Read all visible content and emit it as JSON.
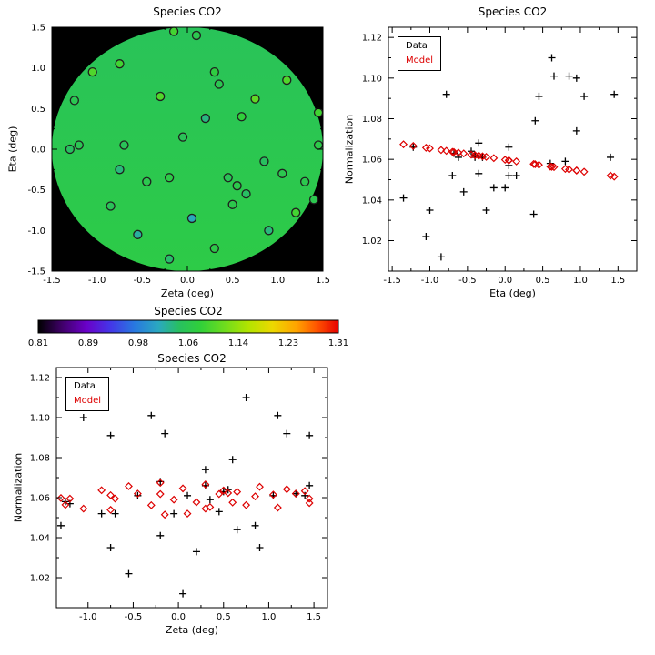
{
  "chart_data": {
    "type": "scatter",
    "panels": [
      {
        "id": "map",
        "title": "Species CO2",
        "xlabel": "Zeta (deg)",
        "ylabel": "Eta (deg)",
        "xlim": [
          -1.5,
          1.5
        ],
        "ylim": [
          -1.5,
          1.5
        ],
        "xticks": [
          -1.5,
          -1.0,
          -0.5,
          0.0,
          0.5,
          1.0,
          1.5
        ],
        "yticks": [
          -1.5,
          -1.0,
          -0.5,
          0.0,
          0.5,
          1.0,
          1.5
        ],
        "marker": "circle",
        "field_disk_radius": 1.5,
        "disk_model_top": 1.051,
        "disk_model_bottom": 1.068
      },
      {
        "id": "eta",
        "title": "Species CO2",
        "xlabel": "Eta (deg)",
        "ylabel": "Normalization",
        "xlim": [
          -1.55,
          1.75
        ],
        "ylim": [
          1.005,
          1.125
        ],
        "xticks": [
          -1.5,
          -1.0,
          -0.5,
          0.0,
          0.5,
          1.0,
          1.5
        ],
        "yticks": [
          1.02,
          1.04,
          1.06,
          1.08,
          1.1,
          1.12
        ],
        "legend": {
          "data": "Data",
          "model": "Model"
        }
      },
      {
        "id": "zeta",
        "title": "Species CO2",
        "xlabel": "Zeta (deg)",
        "ylabel": "Normalization",
        "xlim": [
          -1.35,
          1.65
        ],
        "ylim": [
          1.005,
          1.125
        ],
        "xticks": [
          -1.0,
          -0.5,
          0.0,
          0.5,
          1.0,
          1.5
        ],
        "yticks": [
          1.02,
          1.04,
          1.06,
          1.08,
          1.1,
          1.12
        ],
        "legend": {
          "data": "Data",
          "model": "Model"
        }
      }
    ],
    "colorbar": {
      "title": "Species CO2",
      "range": [
        0.81,
        1.31
      ],
      "ticks": [
        0.81,
        0.89,
        0.98,
        1.06,
        1.14,
        1.23,
        1.31
      ],
      "gradient": [
        [
          0.0,
          "#000000"
        ],
        [
          0.08,
          "#40006a"
        ],
        [
          0.16,
          "#6a00c8"
        ],
        [
          0.24,
          "#4436e8"
        ],
        [
          0.32,
          "#2878e0"
        ],
        [
          0.4,
          "#2aa8c0"
        ],
        [
          0.47,
          "#28c060"
        ],
        [
          0.54,
          "#30d03a"
        ],
        [
          0.62,
          "#6edc1e"
        ],
        [
          0.7,
          "#b2e400"
        ],
        [
          0.78,
          "#ecd800"
        ],
        [
          0.86,
          "#ffa400"
        ],
        [
          0.93,
          "#ff5200"
        ],
        [
          1.0,
          "#e60000"
        ]
      ]
    },
    "styles": {
      "data_color": "#000000",
      "model_color": "#dd0000",
      "marker_outline": "#1f1f1f",
      "map_background": "#000000",
      "axis_color": "#000000"
    },
    "points": [
      {
        "zeta": -0.15,
        "eta": 1.45,
        "data": 1.092,
        "model": 1.0515
      },
      {
        "zeta": 0.1,
        "eta": 1.4,
        "data": 1.061,
        "model": 1.052
      },
      {
        "zeta": -0.75,
        "eta": 1.05,
        "data": 1.091,
        "model": 1.0539
      },
      {
        "zeta": -1.05,
        "eta": 0.95,
        "data": 1.1,
        "model": 1.0545
      },
      {
        "zeta": 0.3,
        "eta": 0.95,
        "data": 1.074,
        "model": 1.0545
      },
      {
        "zeta": 0.35,
        "eta": 0.8,
        "data": 1.059,
        "model": 1.0553
      },
      {
        "zeta": -0.3,
        "eta": 0.65,
        "data": 1.101,
        "model": 1.0562
      },
      {
        "zeta": 1.45,
        "eta": 0.05,
        "data": 1.066,
        "model": 1.0595
      },
      {
        "zeta": 0.2,
        "eta": 0.38,
        "data": 1.033,
        "model": 1.0577
      },
      {
        "zeta": -1.2,
        "eta": 0.05,
        "data": 1.057,
        "model": 1.0595
      },
      {
        "zeta": -1.3,
        "eta": 0.0,
        "data": 1.046,
        "model": 1.0598
      },
      {
        "zeta": -0.45,
        "eta": -0.4,
        "data": 1.061,
        "model": 1.062
      },
      {
        "zeta": -0.2,
        "eta": -0.35,
        "data": 1.068,
        "model": 1.0618
      },
      {
        "zeta": 0.45,
        "eta": -0.35,
        "data": 1.053,
        "model": 1.0618
      },
      {
        "zeta": 0.55,
        "eta": -0.45,
        "data": 1.064,
        "model": 1.0623
      },
      {
        "zeta": 0.65,
        "eta": -0.55,
        "data": 1.044,
        "model": 1.0629
      },
      {
        "zeta": 0.5,
        "eta": -0.68,
        "data": 1.063,
        "model": 1.0636
      },
      {
        "zeta": 1.05,
        "eta": -0.3,
        "data": 1.061,
        "model": 1.0615
      },
      {
        "zeta": 1.3,
        "eta": -0.4,
        "data": 1.062,
        "model": 1.062
      },
      {
        "zeta": -0.85,
        "eta": -0.7,
        "data": 1.052,
        "model": 1.0637
      },
      {
        "zeta": 0.05,
        "eta": -0.85,
        "data": 1.012,
        "model": 1.0646
      },
      {
        "zeta": 1.2,
        "eta": -0.78,
        "data": 1.092,
        "model": 1.0642
      },
      {
        "zeta": 1.4,
        "eta": -0.62,
        "data": 1.061,
        "model": 1.0633
      },
      {
        "zeta": -0.2,
        "eta": -1.35,
        "data": 1.041,
        "model": 1.0674
      },
      {
        "zeta": 0.3,
        "eta": -1.22,
        "data": 1.066,
        "model": 1.0666
      },
      {
        "zeta": 0.9,
        "eta": -1.0,
        "data": 1.035,
        "model": 1.0654
      },
      {
        "zeta": -0.75,
        "eta": -0.25,
        "data": 1.035,
        "model": 1.0612
      },
      {
        "zeta": -0.7,
        "eta": 0.05,
        "data": 1.052,
        "model": 1.0595
      },
      {
        "zeta": 0.75,
        "eta": 0.62,
        "data": 1.11,
        "model": 1.0563
      },
      {
        "zeta": 0.6,
        "eta": 0.4,
        "data": 1.079,
        "model": 1.0576
      },
      {
        "zeta": 1.1,
        "eta": 0.85,
        "data": 1.101,
        "model": 1.055
      },
      {
        "zeta": -1.25,
        "eta": 0.6,
        "data": 1.058,
        "model": 1.0564
      },
      {
        "zeta": 0.85,
        "eta": -0.15,
        "data": 1.046,
        "model": 1.0606
      },
      {
        "zeta": -0.55,
        "eta": -1.05,
        "data": 1.022,
        "model": 1.0657
      },
      {
        "zeta": 1.45,
        "eta": 0.45,
        "data": 1.091,
        "model": 1.0573
      },
      {
        "zeta": -0.05,
        "eta": 0.15,
        "data": 1.052,
        "model": 1.059
      }
    ]
  }
}
